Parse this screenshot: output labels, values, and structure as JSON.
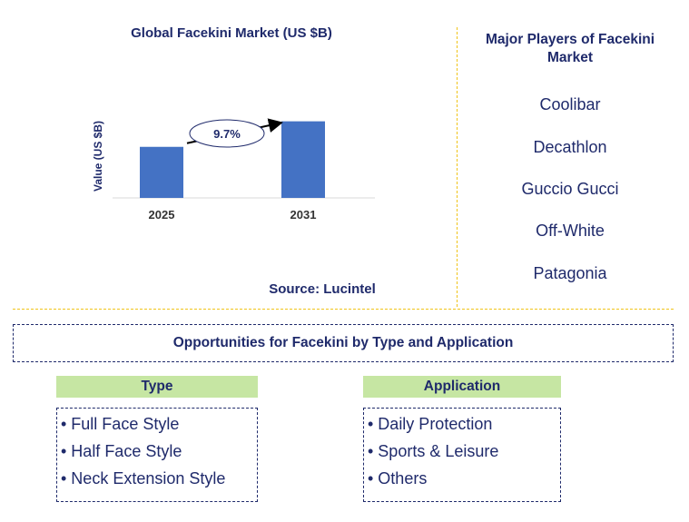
{
  "chart": {
    "title": "Global Facekini Market (US $B)",
    "source": "Source: Lucintel",
    "growth_label": "9.7%"
  },
  "chart_data": {
    "type": "bar",
    "title": "Global Facekini Market (US $B)",
    "categories": [
      "2025",
      "2031"
    ],
    "values": [
      1.0,
      1.5
    ],
    "ylabel": "Value (US $B)",
    "xlabel": "",
    "ylim": [
      0,
      1.6
    ],
    "grid": false,
    "bar_color": "#4472c4",
    "annotation": "9.7%"
  },
  "players": {
    "title": "Major Players of Facekini Market",
    "items": [
      "Coolibar",
      "Decathlon",
      "Guccio Gucci",
      "Off-White",
      "Patagonia"
    ]
  },
  "opportunities": {
    "title": "Opportunities for Facekini by Type and Application"
  },
  "segments": {
    "type": {
      "header": "Type",
      "items": [
        "• Full Face Style",
        "• Half Face Style",
        "• Neck Extension Style"
      ]
    },
    "application": {
      "header": "Application",
      "items": [
        "• Daily Protection",
        "• Sports & Leisure",
        "• Others"
      ]
    }
  },
  "colors": {
    "text": "#1f2a6b",
    "bar": "#4472c4",
    "divider": "#f0c419",
    "header_bg": "#c6e6a3"
  }
}
